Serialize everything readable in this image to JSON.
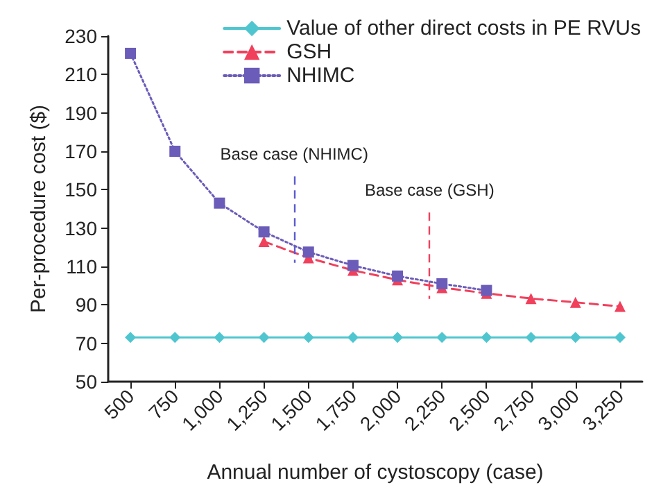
{
  "chart_data": {
    "type": "line",
    "xlabel": "Annual number of cystoscopy (case)",
    "ylabel": "Per-procedure cost ($)",
    "x": [
      500,
      750,
      1000,
      1250,
      1500,
      1750,
      2000,
      2250,
      2500,
      2750,
      3000,
      3250
    ],
    "series": [
      {
        "name": "Value of other direct costs in PE RVUs",
        "color": "#4fc6cf",
        "marker": "diamond",
        "line_style": "solid",
        "values": [
          73,
          73,
          73,
          73,
          73,
          73,
          73,
          73,
          73,
          73,
          73,
          73
        ]
      },
      {
        "name": "GSH",
        "color": "#f0405c",
        "marker": "triangle",
        "line_style": "dashed",
        "values": [
          null,
          null,
          null,
          123,
          114.5,
          108,
          103,
          99,
          96,
          93.3,
          91.3,
          89.2
        ]
      },
      {
        "name": "NHIMC",
        "color": "#6a5cb8",
        "marker": "square",
        "line_style": "dotted",
        "values": [
          221,
          170,
          143,
          128,
          117.5,
          110.5,
          105,
          101,
          97.5,
          null,
          null,
          null
        ]
      }
    ],
    "ref_lines": [
      {
        "axis": "x",
        "value": 1420,
        "label": "Base case (NHIMC)",
        "color": "#5a5ad0",
        "line_style": "dashed"
      },
      {
        "axis": "x",
        "value": 2180,
        "label": "Base case (GSH)",
        "color": "#f0405c",
        "line_style": "dashed"
      }
    ],
    "xlim": [
      375,
      3375
    ],
    "xticks": [
      500,
      750,
      {
        "value": 1000,
        "label": "1,000"
      },
      {
        "value": 1250,
        "label": "1,250"
      },
      {
        "value": 1500,
        "label": "1,500"
      },
      {
        "value": 1750,
        "label": "1,750"
      },
      {
        "value": 2000,
        "label": "2,000"
      },
      {
        "value": 2250,
        "label": "2,250"
      },
      {
        "value": 2500,
        "label": "2,500"
      },
      {
        "value": 2750,
        "label": "2,750"
      },
      {
        "value": 3000,
        "label": "3,000"
      },
      {
        "value": 3250,
        "label": "3,250"
      }
    ],
    "ylim": [
      50,
      230
    ],
    "yticks": [
      50,
      70,
      90,
      110,
      130,
      150,
      170,
      190,
      210,
      230
    ],
    "grid": false,
    "legend": "top right"
  }
}
